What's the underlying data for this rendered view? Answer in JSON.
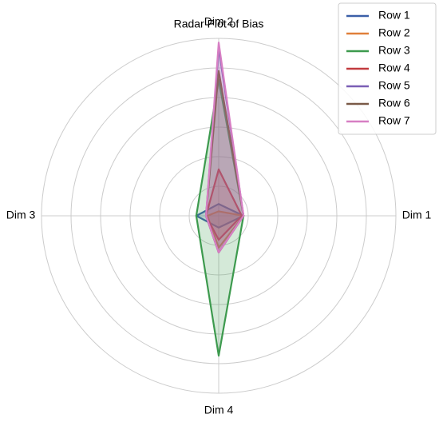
{
  "chart_data": {
    "type": "radar",
    "title": "Radar Plot of Bias",
    "categories": [
      "Dim 1",
      "Dim 2",
      "Dim 3",
      "Dim 4"
    ],
    "ylim": [
      0,
      6
    ],
    "yticks": [
      1,
      2,
      3,
      4,
      5,
      6
    ],
    "grid": true,
    "legend": "upper right",
    "series": [
      {
        "name": "Row 1",
        "color": "#3b5fa8",
        "values": [
          0.84,
          0.4,
          0.76,
          0.4
        ]
      },
      {
        "name": "Row 2",
        "color": "#e0803a",
        "values": [
          0.84,
          0.15,
          0.38,
          1.08
        ]
      },
      {
        "name": "Row 3",
        "color": "#3d9a4e",
        "values": [
          0.84,
          4.6,
          0.76,
          4.73
        ]
      },
      {
        "name": "Row 4",
        "color": "#c23b3f",
        "values": [
          0.78,
          1.57,
          0.43,
          0.81
        ]
      },
      {
        "name": "Row 5",
        "color": "#7b5fb5",
        "values": [
          0.84,
          5.68,
          0.43,
          1.24
        ]
      },
      {
        "name": "Row 6",
        "color": "#7a5a48",
        "values": [
          0.84,
          4.9,
          0.43,
          1.24
        ]
      },
      {
        "name": "Row 7",
        "color": "#d77fc4",
        "values": [
          0.84,
          5.86,
          0.43,
          1.24
        ]
      }
    ]
  }
}
